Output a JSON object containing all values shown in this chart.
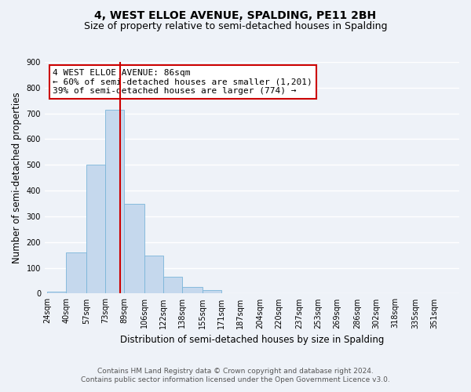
{
  "title": "4, WEST ELLOE AVENUE, SPALDING, PE11 2BH",
  "subtitle": "Size of property relative to semi-detached houses in Spalding",
  "xlabel": "Distribution of semi-detached houses by size in Spalding",
  "ylabel": "Number of semi-detached properties",
  "bin_labels": [
    "24sqm",
    "40sqm",
    "57sqm",
    "73sqm",
    "89sqm",
    "106sqm",
    "122sqm",
    "138sqm",
    "155sqm",
    "171sqm",
    "187sqm",
    "204sqm",
    "220sqm",
    "237sqm",
    "253sqm",
    "269sqm",
    "286sqm",
    "302sqm",
    "318sqm",
    "335sqm",
    "351sqm"
  ],
  "bin_edges": [
    24,
    40,
    57,
    73,
    89,
    106,
    122,
    138,
    155,
    171,
    187,
    204,
    220,
    237,
    253,
    269,
    286,
    302,
    318,
    335,
    351,
    367
  ],
  "bar_heights": [
    8,
    160,
    500,
    715,
    350,
    148,
    65,
    27,
    12,
    0,
    0,
    0,
    0,
    0,
    0,
    0,
    0,
    0,
    0,
    0,
    0
  ],
  "bar_color": "#c5d8ed",
  "bar_edgecolor": "#7ab5d9",
  "property_value": 86,
  "vline_color": "#cc0000",
  "ylim": [
    0,
    900
  ],
  "yticks": [
    0,
    100,
    200,
    300,
    400,
    500,
    600,
    700,
    800,
    900
  ],
  "annotation_title": "4 WEST ELLOE AVENUE: 86sqm",
  "annotation_line1": "← 60% of semi-detached houses are smaller (1,201)",
  "annotation_line2": "39% of semi-detached houses are larger (774) →",
  "annotation_box_color": "white",
  "annotation_box_edgecolor": "#cc0000",
  "footer1": "Contains HM Land Registry data © Crown copyright and database right 2024.",
  "footer2": "Contains public sector information licensed under the Open Government Licence v3.0.",
  "bg_color": "#eef2f8",
  "grid_color": "white",
  "title_fontsize": 10,
  "subtitle_fontsize": 9,
  "axis_label_fontsize": 8.5,
  "tick_fontsize": 7,
  "annotation_fontsize": 8,
  "footer_fontsize": 6.5
}
